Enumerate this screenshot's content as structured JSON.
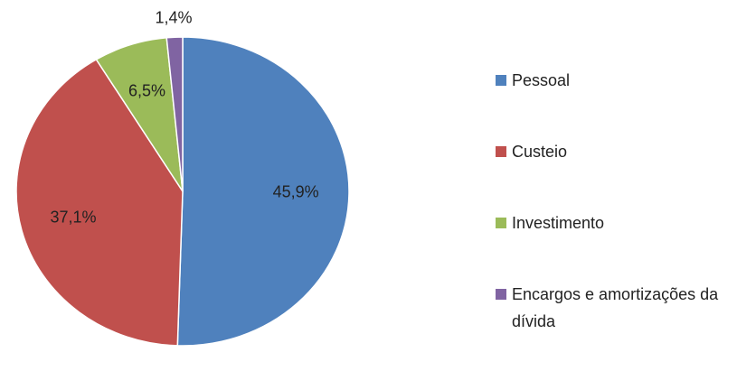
{
  "chart_data": {
    "type": "pie",
    "categories": [
      "Pessoal",
      "Custeio",
      "Investimento",
      "Encargos e amortizações da dívida"
    ],
    "values": [
      45.9,
      37.1,
      6.5,
      1.4
    ],
    "value_labels": [
      "45,9%",
      "37,1%",
      "6,5%",
      "1,4%"
    ],
    "colors": [
      "#4f81bd",
      "#c0504d",
      "#9bbb59",
      "#8064a2"
    ],
    "legend": "right"
  }
}
